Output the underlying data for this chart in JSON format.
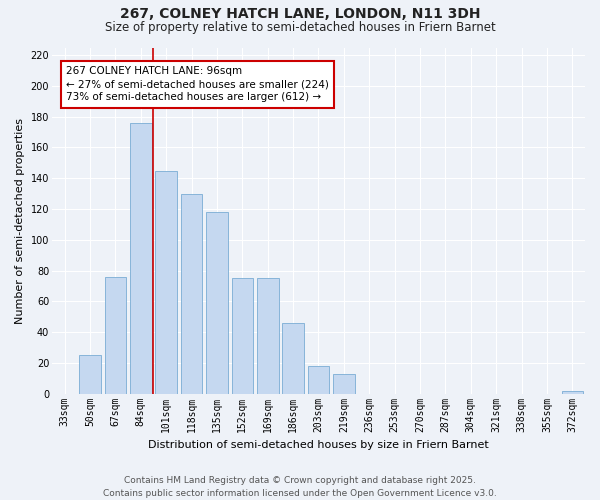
{
  "title": "267, COLNEY HATCH LANE, LONDON, N11 3DH",
  "subtitle": "Size of property relative to semi-detached houses in Friern Barnet",
  "xlabel": "Distribution of semi-detached houses by size in Friern Barnet",
  "ylabel": "Number of semi-detached properties",
  "categories": [
    "33sqm",
    "50sqm",
    "67sqm",
    "84sqm",
    "101sqm",
    "118sqm",
    "135sqm",
    "152sqm",
    "169sqm",
    "186sqm",
    "203sqm",
    "219sqm",
    "236sqm",
    "253sqm",
    "270sqm",
    "287sqm",
    "304sqm",
    "321sqm",
    "338sqm",
    "355sqm",
    "372sqm"
  ],
  "values": [
    0,
    25,
    76,
    176,
    145,
    130,
    118,
    75,
    75,
    46,
    18,
    13,
    0,
    0,
    0,
    0,
    0,
    0,
    0,
    0,
    2
  ],
  "bar_color": "#c5d8f0",
  "bar_edge_color": "#7aadd4",
  "property_size_label": "267 COLNEY HATCH LANE: 96sqm",
  "pct_smaller": 27,
  "pct_smaller_count": 224,
  "pct_larger": 73,
  "pct_larger_count": 612,
  "annotation_line_color": "#cc0000",
  "annotation_box_edge_color": "#cc0000",
  "vline_x_index": 3.5,
  "ylim": [
    0,
    225
  ],
  "yticks": [
    0,
    20,
    40,
    60,
    80,
    100,
    120,
    140,
    160,
    180,
    200,
    220
  ],
  "bg_color": "#eef2f8",
  "grid_color": "#ffffff",
  "footer_text": "Contains HM Land Registry data © Crown copyright and database right 2025.\nContains public sector information licensed under the Open Government Licence v3.0.",
  "title_fontsize": 10,
  "subtitle_fontsize": 8.5,
  "axis_label_fontsize": 8,
  "tick_fontsize": 7,
  "annotation_fontsize": 7.5,
  "footer_fontsize": 6.5
}
